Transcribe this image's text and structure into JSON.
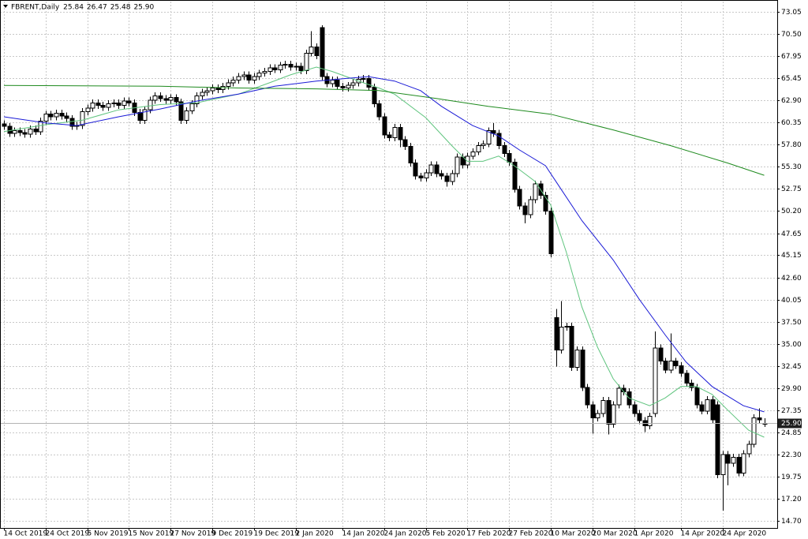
{
  "chart_data": {
    "type": "candlestick",
    "symbol": "FBRENT,Daily",
    "xlim": [
      -0.76,
      148.5
    ],
    "ylim": [
      13.9,
      74.2
    ],
    "grid": true,
    "up_color": "#ffffff",
    "down_color": "#000000",
    "outline_color": "#000000",
    "xticks": [
      {
        "value": 0,
        "label": "14 Oct 2019"
      },
      {
        "value": 8,
        "label": "24 Oct 2019"
      },
      {
        "value": 16,
        "label": "5 Nov 2019"
      },
      {
        "value": 24,
        "label": "15 Nov 2019"
      },
      {
        "value": 32,
        "label": "27 Nov 2019"
      },
      {
        "value": 40,
        "label": "9 Dec 2019"
      },
      {
        "value": 48,
        "label": "19 Dec 2019"
      },
      {
        "value": 56,
        "label": "2 Jan 2020"
      },
      {
        "value": 65,
        "label": "14 Jan 2020"
      },
      {
        "value": 73,
        "label": "24 Jan 2020"
      },
      {
        "value": 81,
        "label": "5 Feb 2020"
      },
      {
        "value": 89,
        "label": "17 Feb 2020"
      },
      {
        "value": 97,
        "label": "27 Feb 2020"
      },
      {
        "value": 105,
        "label": "10 Mar 2020"
      },
      {
        "value": 113,
        "label": "20 Mar 2020"
      },
      {
        "value": 121,
        "label": "1 Apr 2020"
      },
      {
        "value": 130,
        "label": "14 Apr 2020"
      },
      {
        "value": 138,
        "label": "24 Apr 2020"
      }
    ],
    "yticks": [
      {
        "value": 73.05,
        "label": "73.05"
      },
      {
        "value": 70.5,
        "label": "70.50"
      },
      {
        "value": 67.95,
        "label": "67.95"
      },
      {
        "value": 65.45,
        "label": "65.45"
      },
      {
        "value": 62.9,
        "label": "62.90"
      },
      {
        "value": 60.35,
        "label": "60.35"
      },
      {
        "value": 57.8,
        "label": "57.80"
      },
      {
        "value": 55.3,
        "label": "55.30"
      },
      {
        "value": 52.75,
        "label": "52.75"
      },
      {
        "value": 50.2,
        "label": "50.20"
      },
      {
        "value": 47.65,
        "label": "47.65"
      },
      {
        "value": 45.15,
        "label": "45.15"
      },
      {
        "value": 42.6,
        "label": "42.60"
      },
      {
        "value": 40.05,
        "label": "40.05"
      },
      {
        "value": 37.5,
        "label": "37.50"
      },
      {
        "value": 35,
        "label": "35.00"
      },
      {
        "value": 32.45,
        "label": "32.45"
      },
      {
        "value": 29.9,
        "label": "29.90"
      },
      {
        "value": 27.35,
        "label": "27.35"
      },
      {
        "value": 24.85,
        "label": "24.85"
      },
      {
        "value": 22.3,
        "label": "22.30"
      },
      {
        "value": 19.75,
        "label": "19.75"
      },
      {
        "value": 17.2,
        "label": "17.20"
      },
      {
        "value": 14.7,
        "label": "14.70"
      }
    ],
    "open": [
      60.2,
      59.9,
      59.1,
      59.4,
      59.2,
      59.0,
      59.6,
      59.3,
      60.5,
      61.3,
      61.0,
      61.4,
      61.1,
      60.8,
      59.9,
      60.0,
      61.6,
      62.0,
      62.6,
      62.3,
      62.1,
      62.5,
      62.6,
      62.3,
      62.8,
      62.6,
      61.5,
      60.6,
      61.8,
      62.9,
      63.4,
      63.1,
      62.9,
      63.2,
      62.7,
      60.6,
      61.7,
      62.5,
      63.4,
      63.8,
      64.0,
      64.3,
      64.1,
      64.5,
      64.9,
      65.2,
      65.6,
      65.8,
      65.2,
      65.6,
      66.0,
      66.2,
      66.6,
      66.4,
      66.9,
      67.0,
      66.7,
      66.8,
      66.3,
      68.3,
      69.0,
      71.2,
      65.6,
      64.8,
      65.2,
      64.5,
      64.3,
      64.6,
      64.9,
      65.3,
      65.4,
      64.4,
      62.5,
      61.0,
      58.9,
      58.6,
      59.8,
      58.4,
      57.6,
      55.7,
      54.2,
      54.0,
      54.6,
      55.5,
      54.5,
      54.2,
      53.6,
      54.5,
      56.4,
      55.5,
      56.5,
      57.0,
      57.7,
      57.9,
      59.4,
      59.1,
      57.7,
      56.8,
      55.8,
      52.7,
      50.8,
      49.8,
      51.5,
      53.3,
      52.0,
      50.2,
      38.0,
      34.3,
      36.9,
      37.0,
      32.3,
      34.3,
      30.0,
      28.0,
      26.5,
      27.0,
      28.5,
      25.8,
      28.0,
      29.9,
      29.5,
      28.0,
      27.0,
      26.2,
      25.6,
      27.0,
      34.5,
      33.0,
      32.0,
      33.0,
      32.5,
      31.6,
      30.5,
      30.0,
      28.0,
      27.3,
      28.6,
      28.0,
      20.0,
      22.3,
      21.3,
      22.0,
      20.2,
      22.4,
      23.5,
      26.5,
      25.84
    ],
    "high": [
      60.6,
      60.3,
      59.8,
      59.8,
      59.6,
      60.0,
      60.0,
      60.9,
      61.7,
      61.7,
      61.8,
      61.8,
      61.5,
      61.2,
      60.4,
      62.0,
      62.4,
      63.0,
      63.0,
      62.7,
      62.9,
      63.0,
      63.0,
      63.2,
      63.2,
      63.0,
      61.9,
      62.2,
      63.3,
      63.8,
      63.8,
      63.5,
      63.6,
      63.6,
      63.1,
      62.1,
      62.9,
      63.8,
      64.2,
      64.4,
      64.7,
      64.7,
      64.9,
      65.3,
      65.6,
      66.0,
      66.2,
      66.2,
      66.0,
      66.4,
      66.6,
      67.0,
      67.0,
      67.3,
      67.4,
      67.4,
      67.2,
      67.2,
      68.7,
      70.8,
      69.4,
      71.5,
      66.0,
      65.6,
      65.6,
      64.9,
      65.0,
      65.3,
      65.7,
      65.8,
      65.8,
      64.8,
      62.9,
      61.4,
      59.3,
      60.2,
      60.2,
      58.8,
      58.0,
      56.1,
      54.6,
      55.0,
      55.9,
      55.9,
      54.9,
      54.6,
      54.9,
      56.8,
      56.8,
      56.9,
      57.4,
      58.1,
      58.3,
      59.8,
      60.3,
      59.5,
      58.1,
      57.2,
      56.2,
      53.1,
      51.2,
      51.9,
      53.7,
      53.7,
      52.4,
      50.6,
      39.0,
      39.9,
      37.4,
      37.4,
      34.7,
      34.7,
      30.4,
      28.4,
      27.4,
      28.9,
      28.9,
      28.4,
      30.3,
      30.3,
      29.9,
      28.4,
      27.4,
      26.6,
      27.1,
      36.4,
      34.9,
      33.4,
      36.2,
      33.4,
      32.9,
      32.0,
      30.9,
      30.4,
      28.4,
      29.0,
      29.0,
      28.4,
      22.7,
      22.7,
      22.4,
      22.4,
      22.8,
      23.9,
      26.9,
      27.6,
      26.47
    ],
    "low": [
      59.5,
      58.7,
      58.7,
      58.8,
      58.6,
      58.6,
      58.9,
      58.9,
      60.1,
      60.6,
      60.6,
      60.7,
      60.4,
      59.5,
      59.5,
      59.6,
      61.2,
      61.6,
      61.9,
      61.7,
      61.7,
      62.1,
      61.9,
      61.9,
      62.2,
      61.1,
      60.2,
      60.2,
      61.4,
      62.5,
      62.7,
      62.5,
      62.5,
      62.3,
      60.2,
      60.2,
      61.3,
      62.1,
      63.0,
      63.4,
      63.6,
      63.7,
      63.7,
      64.1,
      64.5,
      64.8,
      65.2,
      64.8,
      64.8,
      65.2,
      65.6,
      65.8,
      66.0,
      66.0,
      66.5,
      66.3,
      66.3,
      65.9,
      65.9,
      67.9,
      67.6,
      65.2,
      64.4,
      64.4,
      64.1,
      63.9,
      63.9,
      64.2,
      64.5,
      64.9,
      64.0,
      62.1,
      60.6,
      58.5,
      58.2,
      58.2,
      57.5,
      57.2,
      55.3,
      53.8,
      53.6,
      53.6,
      54.2,
      54.1,
      53.8,
      53.0,
      53.2,
      54.1,
      55.1,
      55.1,
      56.1,
      56.6,
      57.3,
      57.5,
      58.7,
      57.3,
      56.4,
      55.4,
      52.3,
      50.4,
      48.8,
      49.4,
      51.1,
      51.6,
      49.8,
      44.9,
      32.4,
      33.9,
      36.5,
      31.9,
      31.9,
      29.6,
      27.6,
      24.7,
      26.1,
      26.6,
      24.6,
      25.4,
      27.6,
      29.1,
      27.6,
      26.6,
      25.8,
      24.9,
      25.2,
      26.6,
      32.6,
      31.6,
      31.6,
      32.1,
      31.2,
      30.1,
      29.6,
      27.6,
      26.9,
      26.9,
      25.9,
      19.6,
      15.9,
      18.8,
      20.9,
      19.8,
      19.8,
      22.0,
      23.1,
      25.9,
      25.48
    ],
    "close": [
      59.9,
      59.1,
      59.4,
      59.2,
      59.0,
      59.6,
      59.3,
      60.5,
      61.3,
      61.0,
      61.4,
      61.1,
      60.8,
      59.9,
      60.0,
      61.6,
      62.0,
      62.6,
      62.3,
      62.1,
      62.5,
      62.6,
      62.3,
      62.8,
      62.6,
      61.5,
      60.6,
      61.8,
      62.9,
      63.4,
      63.1,
      62.9,
      63.2,
      62.7,
      60.6,
      61.7,
      62.5,
      63.4,
      63.8,
      64.0,
      64.3,
      64.1,
      64.5,
      64.9,
      65.2,
      65.6,
      65.8,
      65.2,
      65.6,
      66.0,
      66.2,
      66.6,
      66.4,
      66.9,
      67.0,
      66.7,
      66.8,
      66.3,
      68.3,
      69.0,
      68.0,
      65.6,
      64.8,
      65.2,
      64.5,
      64.3,
      64.6,
      64.9,
      65.3,
      65.4,
      64.4,
      62.5,
      61.0,
      58.9,
      58.6,
      59.8,
      58.4,
      57.6,
      55.7,
      54.2,
      54.0,
      54.6,
      55.5,
      54.5,
      54.2,
      53.6,
      54.5,
      56.4,
      55.5,
      56.5,
      57.0,
      57.7,
      57.9,
      59.4,
      59.1,
      57.7,
      56.8,
      55.8,
      52.7,
      50.8,
      49.8,
      51.5,
      53.3,
      52.0,
      50.2,
      45.3,
      34.3,
      36.9,
      37.0,
      32.3,
      34.3,
      30.0,
      28.0,
      26.5,
      27.0,
      28.5,
      25.8,
      28.0,
      29.9,
      29.5,
      28.0,
      27.0,
      26.2,
      25.6,
      26.7,
      34.5,
      33.0,
      32.0,
      33.0,
      32.5,
      31.6,
      30.5,
      30.0,
      28.0,
      27.3,
      28.6,
      26.3,
      20.0,
      22.3,
      21.3,
      22.0,
      20.2,
      22.4,
      23.5,
      26.5,
      26.3,
      25.9
    ],
    "last_price": {
      "value": 25.9,
      "label": "25.90"
    },
    "series": [
      {
        "color": "#5fc47e",
        "x": [
          0,
          8,
          15,
          22,
          30,
          37,
          45,
          51,
          55,
          60,
          63,
          69,
          72,
          75,
          81,
          86,
          89,
          92,
          95,
          98,
          102,
          105,
          108,
          111,
          114,
          117,
          120,
          124,
          127,
          130,
          133,
          136,
          139,
          143,
          146
        ],
        "values": [
          59.3,
          60.1,
          60.6,
          61.8,
          62.4,
          62.6,
          63.6,
          64.9,
          65.8,
          66.7,
          66.2,
          64.9,
          64.3,
          63.6,
          60.9,
          57.7,
          55.9,
          55.9,
          56.5,
          55.4,
          53.6,
          50.9,
          45.5,
          39.2,
          34.6,
          31.0,
          28.8,
          27.9,
          28.8,
          30.1,
          30.1,
          29.2,
          27.4,
          25.1,
          24.3
        ]
      },
      {
        "color": "#1a1ad6",
        "x": [
          0,
          8,
          14,
          22,
          30,
          37,
          45,
          52,
          60,
          66,
          70,
          75,
          80,
          84,
          90,
          95,
          99,
          104,
          107,
          111,
          117,
          122,
          127,
          131,
          136,
          142,
          146
        ],
        "values": [
          61.0,
          60.3,
          60.0,
          61.0,
          61.9,
          62.8,
          63.6,
          64.5,
          65.1,
          65.4,
          65.6,
          65.1,
          64.0,
          62.2,
          60.0,
          58.8,
          57.2,
          55.4,
          52.7,
          49.1,
          44.6,
          40.1,
          36.0,
          32.9,
          30.1,
          27.9,
          27.2
        ]
      },
      {
        "color": "#1e8a1e",
        "x": [
          0,
          30,
          45,
          60,
          72,
          83,
          93,
          105,
          117,
          128,
          139,
          146
        ],
        "values": [
          64.6,
          64.5,
          64.3,
          64.2,
          64.0,
          63.1,
          62.2,
          61.3,
          59.5,
          57.7,
          55.7,
          54.3
        ]
      }
    ]
  }
}
